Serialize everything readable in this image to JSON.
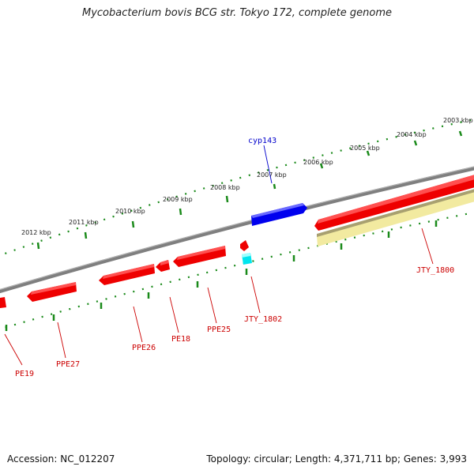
{
  "title": "Mycobacterium bovis BCG str. Tokyo 172, complete genome",
  "footer": {
    "accession": "Accession: NC_012207",
    "summary": "Topology: circular; Length: 4,371,711 bp; Genes: 3,993"
  },
  "colors": {
    "backbone": "#7f7f7f",
    "ticks": "#1a8a1a",
    "forward_gene": "#ff0000",
    "reverse_gene": "#ff0000",
    "cyp143": "#0000ee",
    "small_rna": "#00e5ee",
    "pseudo_band": "#f2eaa0",
    "label_red": "#cc0000",
    "label_blue": "#0000cc"
  },
  "kbp_labels": [
    "2003 kbp",
    "2004 kbp",
    "2005 kbp",
    "2006 kbp",
    "2007 kbp",
    "2008 kbp",
    "2009 kbp",
    "2010 kbp",
    "2011 kbp",
    "2012 kbp"
  ],
  "gene_labels": [
    "cyp143",
    "JTY_1800",
    "JTY_1802",
    "PPE25",
    "PE18",
    "PPE26",
    "PPE27",
    "PE19"
  ]
}
